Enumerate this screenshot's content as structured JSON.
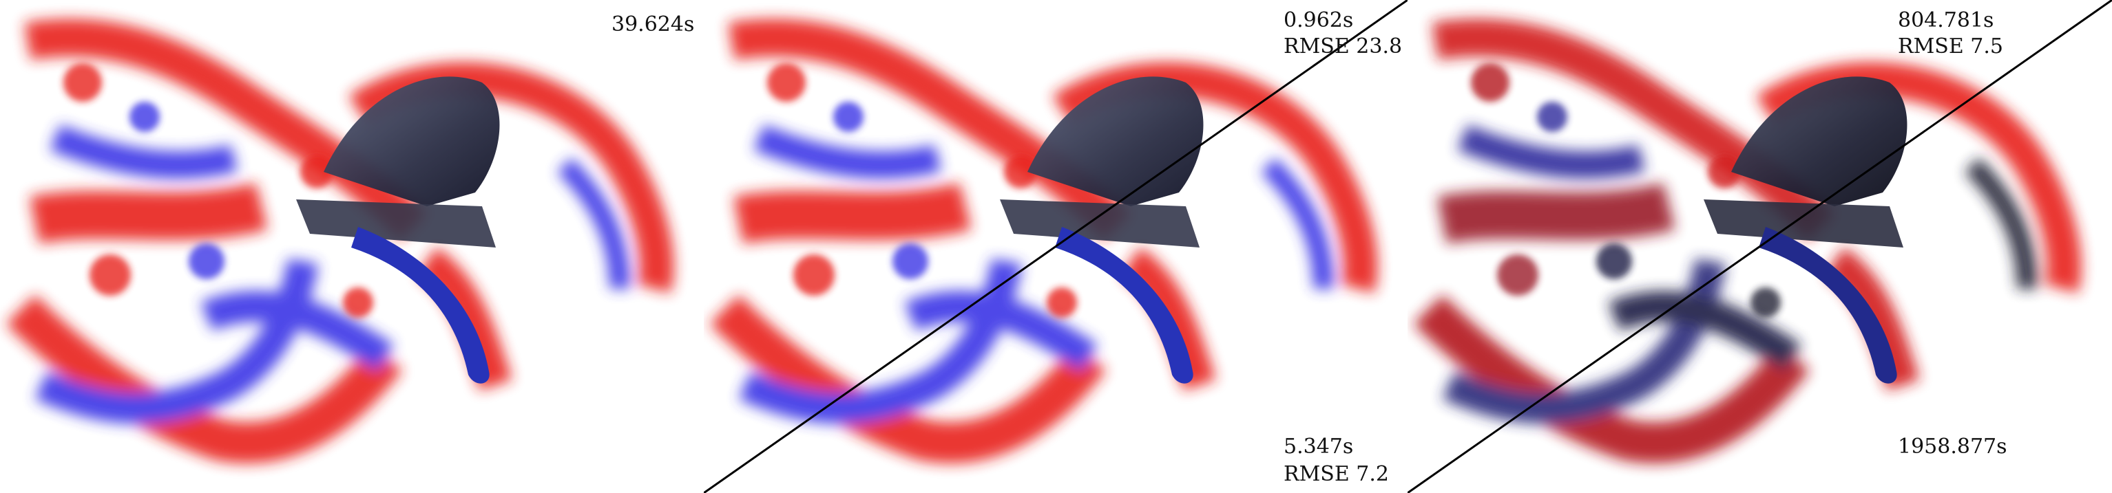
{
  "panels": [
    {
      "time": "39.624s"
    },
    {
      "time_top": "0.962s",
      "rmse_top": "RMSE 23.8",
      "time_bottom": "5.347s",
      "rmse_bottom": "RMSE 7.2"
    },
    {
      "time_top": "804.781s",
      "rmse_top": "RMSE 7.5",
      "time_bottom": "1958.877s"
    }
  ],
  "colors": {
    "positive_vortex": "#e8201c",
    "negative_vortex": "#3b36e6",
    "propeller": "#2a2d44",
    "diagonal_line": "#000000"
  }
}
